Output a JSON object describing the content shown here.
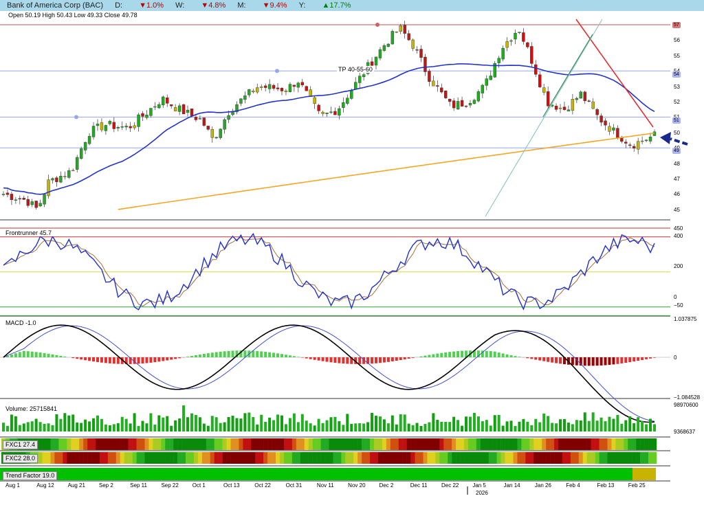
{
  "header": {
    "title": "Bank of America Corp (BAC)",
    "day_label": "D:",
    "day_value": "▼1.0%",
    "week_label": "W:",
    "week_value": "▼4.8%",
    "month_label": "M:",
    "month_value": "▼9.4%",
    "year_label": "Y:",
    "year_value": "▲17.7%"
  },
  "ohlc": {
    "text": "Open 50.19  High 50.43  Low 49.33  Close 49.78"
  },
  "price_panel": {
    "annotation": "TP 40-55-60",
    "y_ticks": [
      "57",
      "56",
      "55",
      "54",
      "53",
      "52",
      "51",
      "50",
      "49",
      "48",
      "47",
      "46",
      "45"
    ],
    "tags": [
      {
        "text": "57",
        "bg": "#d77a7a"
      },
      {
        "text": "54",
        "bg": "#aab4f0"
      },
      {
        "text": "51",
        "bg": "#aab4f0"
      },
      {
        "text": "49",
        "bg": "#aab4f0"
      }
    ]
  },
  "frontrunner": {
    "label": "Frontrunner 45.7",
    "y_ticks": [
      "450",
      "400",
      "200",
      "0",
      "−50"
    ]
  },
  "macd": {
    "label": "MACD -1.0",
    "y_ticks": [
      "1.037875",
      "0",
      "−1.084528"
    ]
  },
  "volume": {
    "label": "Volume: 25715841",
    "y_ticks": [
      "98970600",
      "9368637"
    ]
  },
  "fxc1": {
    "label": "FXC1 27.4"
  },
  "fxc2": {
    "label": "FXC2 28.0"
  },
  "trend": {
    "label": "Trend Factor 19.0"
  },
  "x_axis": {
    "dates": [
      "Aug 1",
      "Aug 12",
      "Aug 21",
      "Sep 2",
      "Sep 11",
      "Sep 22",
      "Oct 1",
      "Oct 13",
      "Oct 22",
      "Oct 31",
      "Nov 11",
      "Nov 20",
      "Dec 2",
      "Dec 11",
      "Dec 22",
      "Jan 5",
      "Jan 14",
      "Jan 26",
      "Feb 4",
      "Feb 13",
      "Feb 25"
    ],
    "year": "2026"
  },
  "colors": {
    "up": "#22aa22",
    "down": "#cc1111",
    "neutral": "#c8b400",
    "ma50": "#2233cc",
    "ma200": "#f5a623",
    "header_bg": "#a8d8ea"
  }
}
